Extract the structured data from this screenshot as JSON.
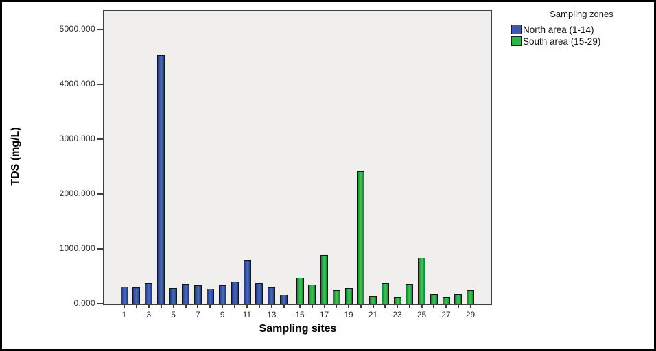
{
  "figure": {
    "background": "#ffffff",
    "border_color": "#000000",
    "plot_background": "#f0efed"
  },
  "chart_data": {
    "type": "bar",
    "title": "",
    "xlabel": "Sampling sites",
    "ylabel": "TDS (mg/L)",
    "grid": false,
    "ylim": [
      0,
      5340
    ],
    "y_ticks": [
      {
        "value": 0,
        "label": "0.000"
      },
      {
        "value": 1000,
        "label": "1000.000"
      },
      {
        "value": 2000,
        "label": "2000.000"
      },
      {
        "value": 3000,
        "label": "3000.000"
      },
      {
        "value": 4000,
        "label": "4000.000"
      },
      {
        "value": 5000,
        "label": "5000.000"
      }
    ],
    "x_tick_labels": [
      "1",
      "3",
      "5",
      "7",
      "9",
      "11",
      "13",
      "15",
      "17",
      "19",
      "21",
      "23",
      "25",
      "27",
      "29"
    ],
    "legend": {
      "title": "Sampling zones",
      "position": "outside-top-right"
    },
    "series": [
      {
        "name": "North area (1-14)",
        "zone": "north",
        "color": "#3b5ba9",
        "color_light": "#4a6cbc",
        "color_dark": "#22397a",
        "sites": [
          1,
          2,
          3,
          4,
          5,
          6,
          7,
          8,
          9,
          10,
          11,
          12,
          13,
          14
        ],
        "values": [
          300,
          285,
          365,
          4520,
          270,
          355,
          330,
          265,
          320,
          390,
          785,
          365,
          285,
          145
        ]
      },
      {
        "name": "South area (15-29)",
        "zone": "south",
        "color": "#2fb44d",
        "color_light": "#3cc65c",
        "color_dark": "#1b7a33",
        "sites": [
          15,
          16,
          17,
          18,
          19,
          20,
          21,
          22,
          23,
          24,
          25,
          26,
          27,
          28,
          29
        ],
        "values": [
          465,
          340,
          880,
          240,
          270,
          2400,
          130,
          365,
          110,
          350,
          830,
          160,
          115,
          160,
          235
        ]
      }
    ]
  }
}
